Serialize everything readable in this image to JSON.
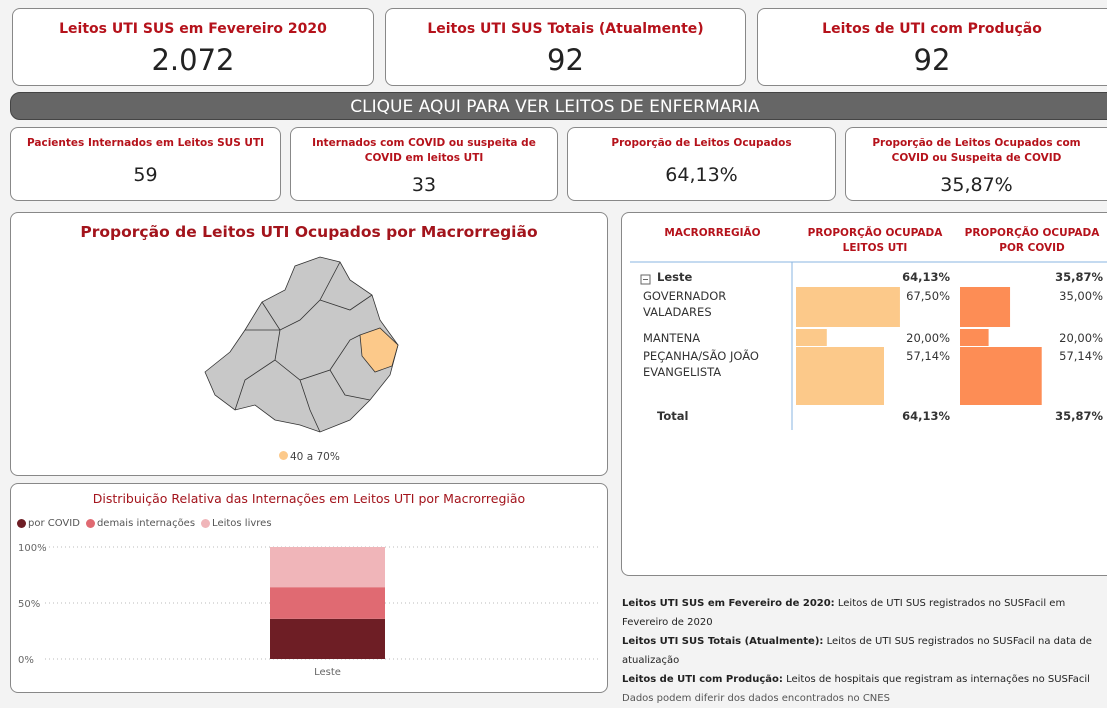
{
  "kpis": [
    {
      "title": "Leitos UTI SUS em Fevereiro 2020",
      "value": "2.072"
    },
    {
      "title": "Leitos UTI SUS Totais (Atualmente)",
      "value": "92"
    },
    {
      "title": "Leitos de UTI com Produção",
      "value": "92"
    }
  ],
  "banner": "CLIQUE AQUI PARA VER LEITOS DE ENFERMARIA",
  "kpis2": [
    {
      "title": "Pacientes Internados em Leitos SUS UTI",
      "value": "59"
    },
    {
      "title": "Internados com COVID ou suspeita de COVID em leitos UTI",
      "value": "33"
    },
    {
      "title": "Proporção de Leitos Ocupados",
      "value": "64,13%"
    },
    {
      "title": "Proporção de Leitos Ocupados com COVID ou Suspeita de COVID",
      "value": "35,87%"
    }
  ],
  "map": {
    "title": "Proporção de Leitos UTI Ocupados por Macrorregião",
    "legend": "40 a 70%",
    "legend_color": "#fcc98a"
  },
  "chart": {
    "type": "bar",
    "title": "Distribuição Relativa das Internações em Leitos UTI por Macrorregião",
    "categories": [
      "Leste"
    ],
    "series": [
      {
        "name": "por COVID",
        "color": "#6e1e25",
        "values": [
          35.87
        ]
      },
      {
        "name": "demais internações",
        "color": "#e06a72",
        "values": [
          28.26
        ]
      },
      {
        "name": "Leitos livres",
        "color": "#f0b5b9",
        "values": [
          35.87
        ]
      }
    ],
    "ylim": [
      0,
      100
    ],
    "yticks": [
      {
        "value": 0,
        "label": "0%"
      },
      {
        "value": 50,
        "label": "50%"
      },
      {
        "value": 100,
        "label": "100%"
      }
    ],
    "grid": true
  },
  "table": {
    "headers": [
      "MACRORREGIÃO",
      "PROPORÇÃO OCUPADA LEITOS UTI",
      "PROPORÇÃO OCUPADA POR COVID"
    ],
    "uti_color": "#fcc98a",
    "covid_color": "#fd8d55",
    "group": {
      "name": "Leste",
      "uti": {
        "value": 64.13,
        "label": "64,13%"
      },
      "covid": {
        "value": 35.87,
        "label": "35,87%"
      }
    },
    "rows": [
      {
        "name": "GOVERNADOR VALADARES",
        "uti": {
          "value": 67.5,
          "label": "67,50%"
        },
        "covid": {
          "value": 35,
          "label": "35,00%"
        }
      },
      {
        "name": "MANTENA",
        "uti": {
          "value": 20,
          "label": "20,00%"
        },
        "covid": {
          "value": 20,
          "label": "20,00%"
        }
      },
      {
        "name": "PEÇANHA/SÃO JOÃO EVANGELISTA",
        "uti": {
          "value": 57.14,
          "label": "57,14%"
        },
        "covid": {
          "value": 57.14,
          "label": "57,14%"
        }
      }
    ],
    "total": {
      "name": "Total",
      "uti": {
        "value": 64.13,
        "label": "64,13%"
      },
      "covid": {
        "value": 35.87,
        "label": "35,87%"
      }
    }
  },
  "notes": [
    {
      "label": "Leitos UTI SUS em Fevereiro de 2020:",
      "text": "Leitos de UTI SUS registrados no SUSFacil em Fevereiro de 2020"
    },
    {
      "label": "Leitos UTI SUS Totais (Atualmente):",
      "text": "Leitos de UTI SUS registrados no SUSFacil na data de atualização"
    },
    {
      "label": "Leitos de UTI com Produção:",
      "text": "Leitos de hospitais que registram as internações no SUSFacil"
    }
  ],
  "disclaimer": "Dados podem diferir dos dados encontrados no CNES"
}
